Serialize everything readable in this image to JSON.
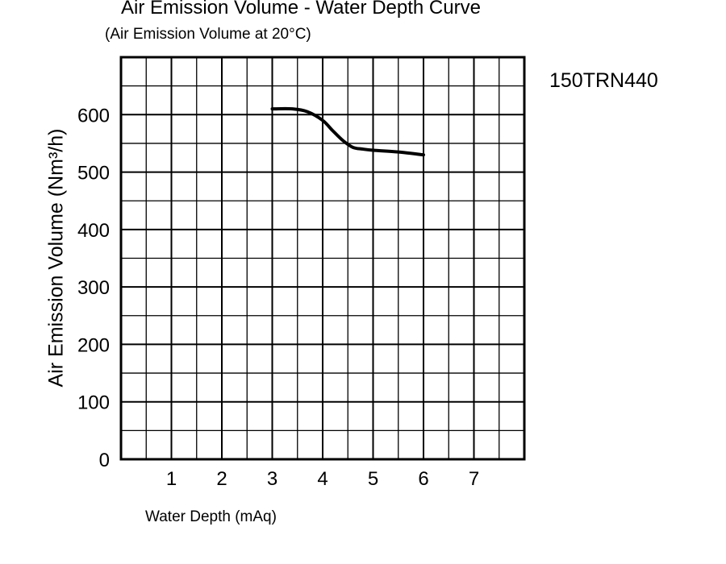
{
  "chart_data": {
    "type": "line",
    "title": "Air Emission Volume - Water Depth Curve",
    "subtitle": "(Air Emission Volume at 20°C)",
    "annotation": "150TRN440",
    "xlabel": "Water Depth (mAq)",
    "ylabel": "Air Emission Volume (Nm³/h)",
    "xlim": [
      0,
      8
    ],
    "ylim": [
      0,
      700
    ],
    "x_ticks": [
      "1",
      "2",
      "3",
      "4",
      "5",
      "6",
      "7"
    ],
    "y_ticks": [
      "0",
      "100",
      "200",
      "300",
      "400",
      "500",
      "600"
    ],
    "grid": true,
    "series": [
      {
        "x": [
          3.0,
          3.4,
          3.7,
          4.0,
          4.2,
          4.4,
          4.6,
          4.8,
          5.0,
          5.5,
          6.0
        ],
        "y": [
          610,
          610,
          605,
          590,
          572,
          555,
          543,
          540,
          538,
          535,
          530
        ]
      }
    ]
  }
}
